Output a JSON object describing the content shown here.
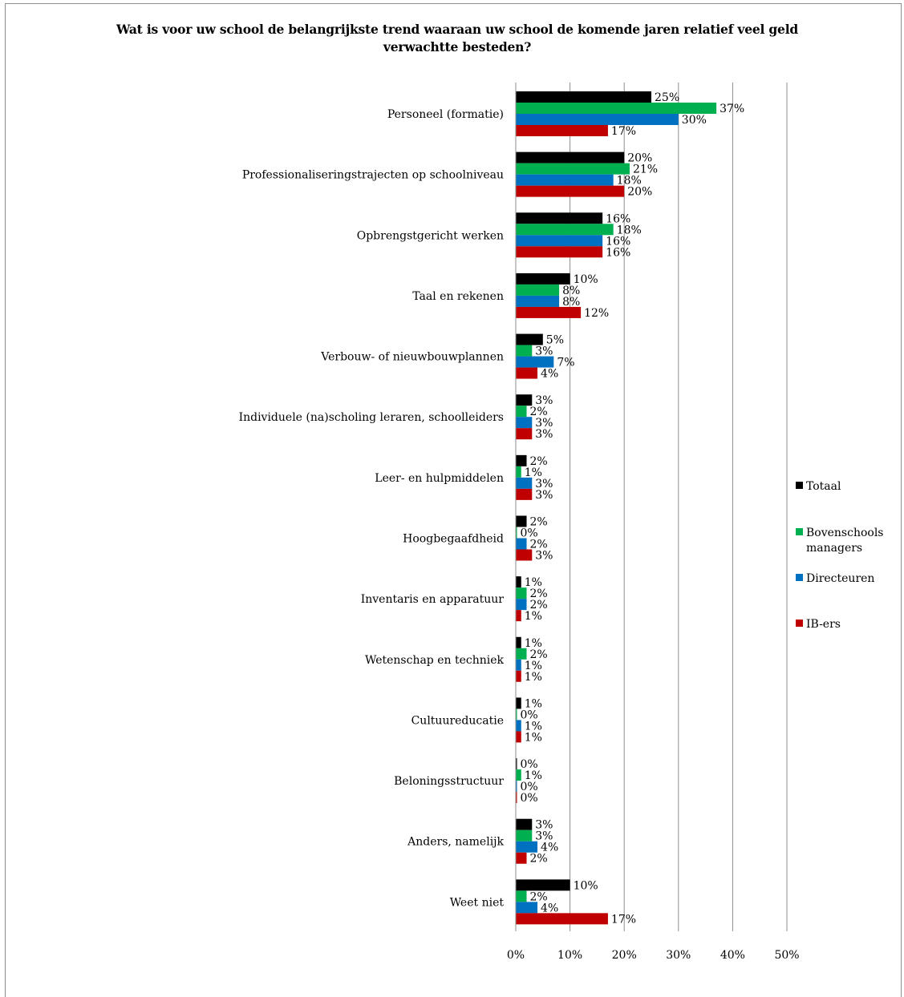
{
  "chart_data": {
    "type": "bar",
    "orientation": "horizontal",
    "title": "Wat is voor uw school de belangrijkste trend waaraan uw school de komende jaren relatief veel geld verwachtte besteden?",
    "categories": [
      "Personeel (formatie)",
      "Professionaliseringstrajecten op schoolniveau",
      "Opbrengstgericht werken",
      "Taal en rekenen",
      "Verbouw- of nieuwbouwplannen",
      "Individuele (na)scholing leraren, schoolleiders",
      "Leer- en hulpmiddelen",
      "Hoogbegaafdheid",
      "Inventaris en apparatuur",
      "Wetenschap en techniek",
      "Cultuureducatie",
      "Beloningsstructuur",
      "Anders, namelijk",
      "Weet niet"
    ],
    "series": [
      {
        "name": "Totaal",
        "color": "#000000",
        "values": [
          25,
          20,
          16,
          10,
          5,
          3,
          2,
          2,
          1,
          1,
          1,
          0,
          3,
          10
        ],
        "labels": [
          "25%",
          "20%",
          "16%",
          "10%",
          "5%",
          "3%",
          "2%",
          "2%",
          "1%",
          "1%",
          "1%",
          "0%",
          "3%",
          "10%"
        ]
      },
      {
        "name": "Bovenschools managers",
        "color": "#00b050",
        "values": [
          37,
          21,
          18,
          8,
          3,
          2,
          1,
          0,
          2,
          2,
          0,
          1,
          3,
          2
        ],
        "labels": [
          "37%",
          "21%",
          "18%",
          "8%",
          "3%",
          "2%",
          "1%",
          "0%",
          "2%",
          "2%",
          "0%",
          "1%",
          "3%",
          "2%"
        ]
      },
      {
        "name": "Directeuren",
        "color": "#0070c0",
        "values": [
          30,
          18,
          16,
          8,
          7,
          3,
          3,
          2,
          2,
          1,
          1,
          0,
          4,
          4
        ],
        "labels": [
          "30%",
          "18%",
          "16%",
          "8%",
          "7%",
          "3%",
          "3%",
          "2%",
          "2%",
          "1%",
          "1%",
          "0%",
          "4%",
          "4%"
        ]
      },
      {
        "name": "IB-ers",
        "color": "#c00000",
        "values": [
          17,
          20,
          16,
          12,
          4,
          3,
          3,
          3,
          1,
          1,
          1,
          0,
          2,
          17
        ],
        "labels": [
          "17%",
          "20%",
          "16%",
          "12%",
          "4%",
          "3%",
          "3%",
          "3%",
          "1%",
          "1%",
          "1%",
          "0%",
          "2%",
          "17%"
        ]
      }
    ],
    "xlim": [
      0,
      50
    ],
    "xticks": [
      "0%",
      "10%",
      "20%",
      "30%",
      "40%",
      "50%"
    ],
    "grid": true,
    "legend": {
      "position": "right"
    }
  }
}
